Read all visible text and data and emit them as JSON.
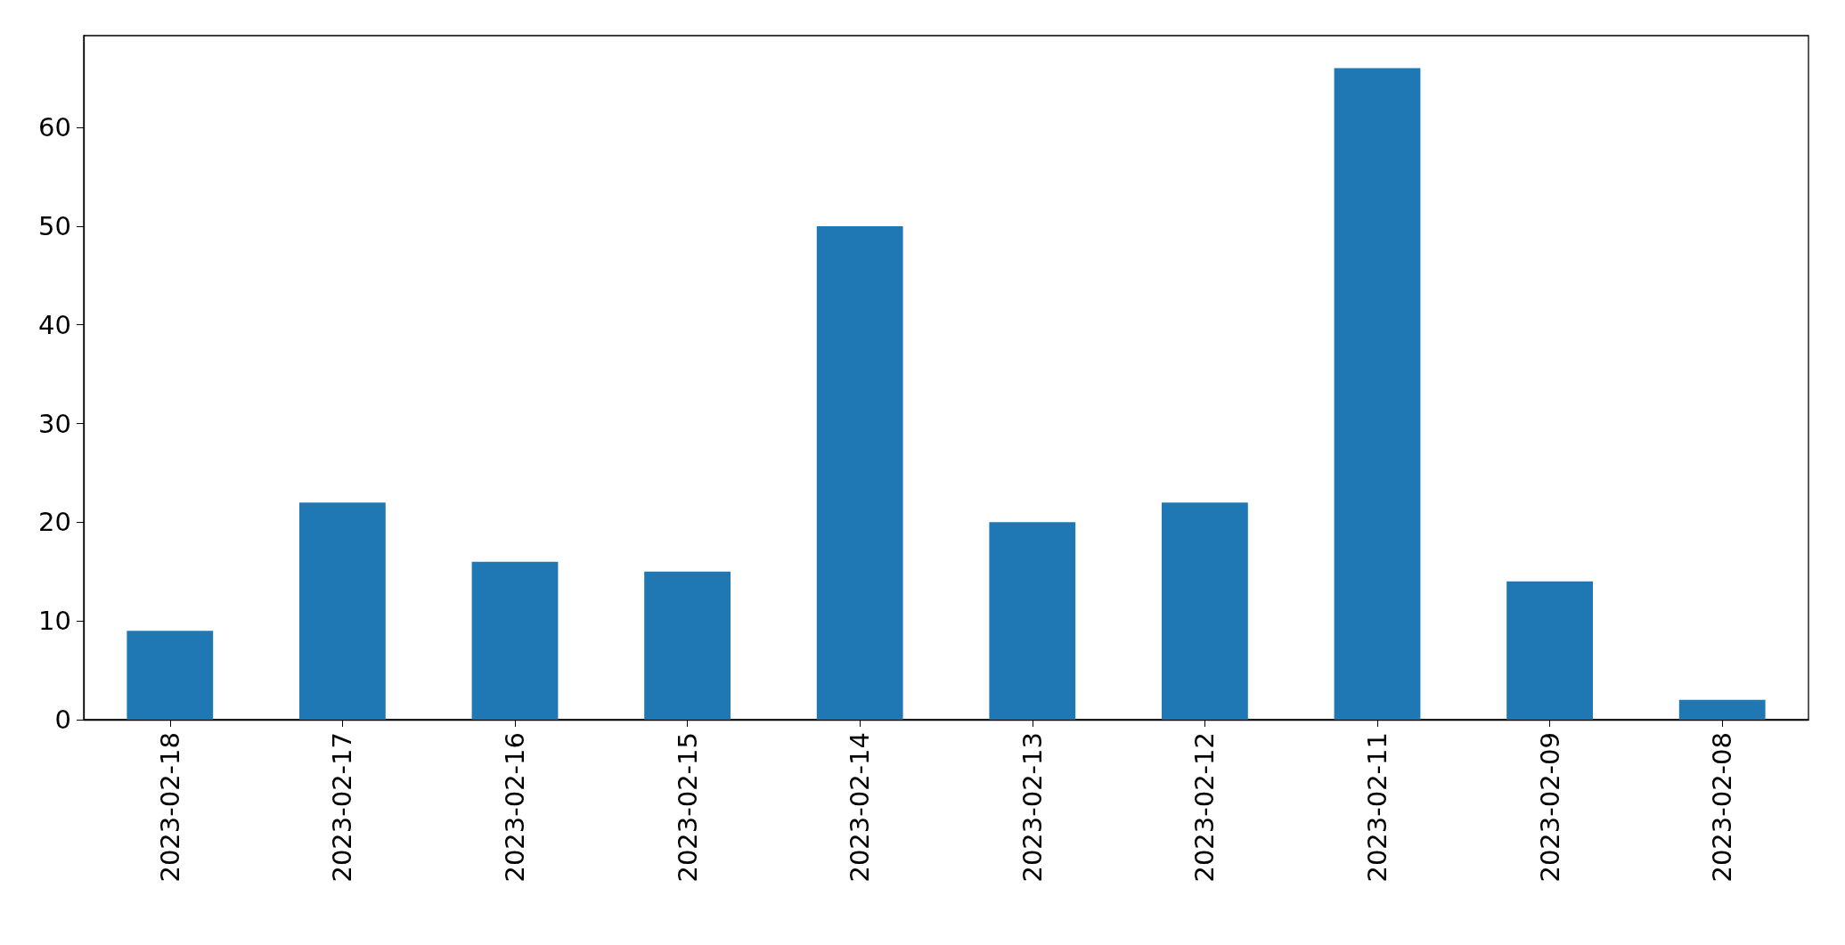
{
  "chart_data": {
    "type": "bar",
    "categories": [
      "2023-02-18",
      "2023-02-17",
      "2023-02-16",
      "2023-02-15",
      "2023-02-14",
      "2023-02-13",
      "2023-02-12",
      "2023-02-11",
      "2023-02-09",
      "2023-02-08"
    ],
    "values": [
      9,
      22,
      16,
      15,
      50,
      20,
      22,
      66,
      14,
      2
    ],
    "color": "#1f77b4",
    "ylim": [
      0,
      69.3
    ],
    "yticks": [
      0,
      10,
      20,
      30,
      40,
      50,
      60
    ],
    "grid": false
  }
}
